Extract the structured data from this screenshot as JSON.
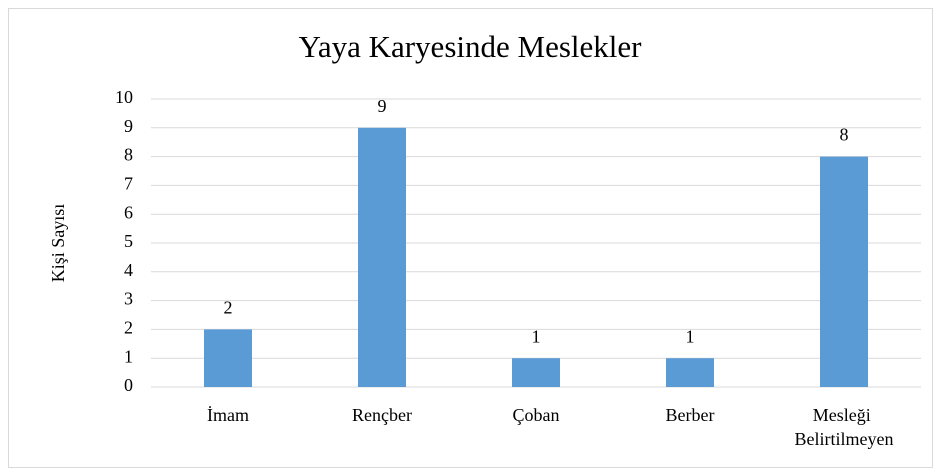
{
  "chart_data": {
    "type": "bar",
    "title": "Yaya Karyesinde Meslekler",
    "y_label": "Kişi Sayısı",
    "categories": [
      "İmam",
      "Rençber",
      "Çoban",
      "Berber",
      "Mesleği Belirtilmeyen"
    ],
    "values": [
      2,
      9,
      1,
      1,
      8
    ],
    "color": "#5b9bd5",
    "ylim": [
      0,
      10
    ],
    "yticks": [
      0,
      1,
      2,
      3,
      4,
      5,
      6,
      7,
      8,
      9,
      10
    ],
    "grid": true
  }
}
